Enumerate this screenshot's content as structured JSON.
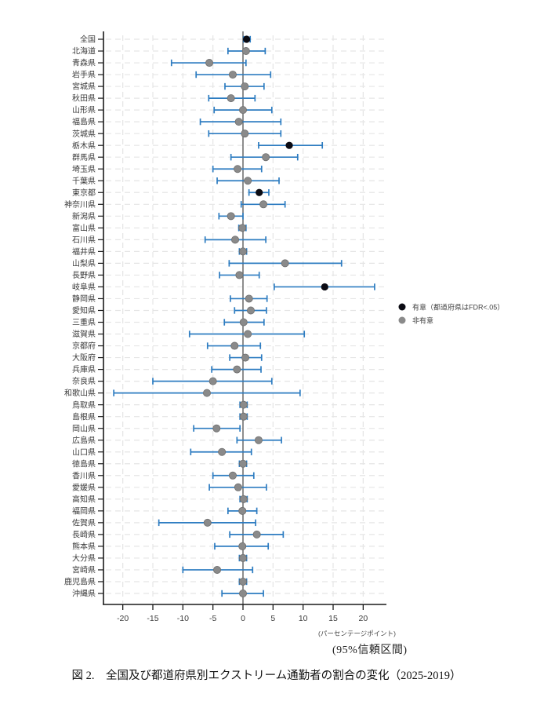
{
  "figure": {
    "caption": "図 2.　全国及び都道府県別エクストリーム通勤者の割合の変化（2025-2019）",
    "ci_note": "(95%信頼区間)"
  },
  "chart_data": {
    "type": "scatter",
    "variant": "forest-plot-dot-with-95ci",
    "xlabel": "(パーセンテージポイント)",
    "xticks": [
      -20,
      -15,
      -10,
      -5,
      0,
      5,
      10,
      15,
      20
    ],
    "xlim": [
      -23.2,
      23.5
    ],
    "grid": true,
    "zero_reference_line": 0,
    "legend_position": "right-middle",
    "legend": [
      {
        "key": "sig",
        "label": "有意（都道府県はFDR<.05）",
        "color": "#0b0b13"
      },
      {
        "key": "ns",
        "label": "非有意",
        "color": "#8a8a8a"
      }
    ],
    "colors": {
      "ci_bar": "#2d7cc1",
      "significant_dot": "#0b0b13",
      "nonsignificant_dot": "#8a8a8a",
      "dot_edge": "#6e6e6e",
      "zero_line": "#5f5f5f",
      "grid": "#e5e5e5",
      "axis": "#1a1a1a",
      "tick_text": "#3c3c3c",
      "legend_text": "#444444"
    },
    "rows": [
      {
        "label": "全国",
        "est": 0.6,
        "lo": 0.1,
        "hi": 1.2,
        "sig": true
      },
      {
        "label": "北海道",
        "est": 0.5,
        "lo": -2.5,
        "hi": 3.7,
        "sig": false
      },
      {
        "label": "青森県",
        "est": -5.6,
        "lo": -11.9,
        "hi": 0.5,
        "sig": false
      },
      {
        "label": "岩手県",
        "est": -1.7,
        "lo": -7.8,
        "hi": 4.6,
        "sig": false
      },
      {
        "label": "宮城県",
        "est": 0.3,
        "lo": -3.0,
        "hi": 3.5,
        "sig": false
      },
      {
        "label": "秋田県",
        "est": -2.0,
        "lo": -5.7,
        "hi": 2.0,
        "sig": false
      },
      {
        "label": "山形県",
        "est": 0.0,
        "lo": -4.8,
        "hi": 4.8,
        "sig": false
      },
      {
        "label": "福島県",
        "est": -0.7,
        "lo": -7.1,
        "hi": 6.3,
        "sig": false
      },
      {
        "label": "茨城県",
        "est": 0.3,
        "lo": -5.7,
        "hi": 6.3,
        "sig": false
      },
      {
        "label": "栃木県",
        "est": 7.7,
        "lo": 2.6,
        "hi": 13.2,
        "sig": true
      },
      {
        "label": "群馬県",
        "est": 3.8,
        "lo": -2.0,
        "hi": 9.1,
        "sig": false
      },
      {
        "label": "埼玉県",
        "est": -0.9,
        "lo": -5.0,
        "hi": 3.1,
        "sig": false
      },
      {
        "label": "千葉県",
        "est": 0.8,
        "lo": -4.3,
        "hi": 6.0,
        "sig": false
      },
      {
        "label": "東京都",
        "est": 2.7,
        "lo": 1.0,
        "hi": 4.3,
        "sig": true
      },
      {
        "label": "神奈川県",
        "est": 3.4,
        "lo": -0.3,
        "hi": 7.0,
        "sig": false
      },
      {
        "label": "新潟県",
        "est": -2.0,
        "lo": -4.0,
        "hi": 0.0,
        "sig": false
      },
      {
        "label": "富山県",
        "est": -0.1,
        "lo": -0.7,
        "hi": 0.5,
        "sig": false
      },
      {
        "label": "石川県",
        "est": -1.3,
        "lo": -6.3,
        "hi": 3.8,
        "sig": false
      },
      {
        "label": "福井県",
        "est": 0.0,
        "lo": -0.6,
        "hi": 0.6,
        "sig": false
      },
      {
        "label": "山梨県",
        "est": 7.0,
        "lo": -2.3,
        "hi": 16.4,
        "sig": false
      },
      {
        "label": "長野県",
        "est": -0.6,
        "lo": -3.9,
        "hi": 2.7,
        "sig": false
      },
      {
        "label": "岐阜県",
        "est": 13.6,
        "lo": 5.2,
        "hi": 21.9,
        "sig": true
      },
      {
        "label": "静岡県",
        "est": 1.0,
        "lo": -2.1,
        "hi": 4.0,
        "sig": false
      },
      {
        "label": "愛知県",
        "est": 1.3,
        "lo": -1.4,
        "hi": 3.9,
        "sig": false
      },
      {
        "label": "三重県",
        "est": 0.1,
        "lo": -3.1,
        "hi": 3.5,
        "sig": false
      },
      {
        "label": "滋賀県",
        "est": 0.8,
        "lo": -8.9,
        "hi": 10.2,
        "sig": false
      },
      {
        "label": "京都府",
        "est": -1.4,
        "lo": -5.9,
        "hi": 2.9,
        "sig": false
      },
      {
        "label": "大阪府",
        "est": 0.4,
        "lo": -2.2,
        "hi": 3.1,
        "sig": false
      },
      {
        "label": "兵庫県",
        "est": -1.0,
        "lo": -5.2,
        "hi": 3.0,
        "sig": false
      },
      {
        "label": "奈良県",
        "est": -5.0,
        "lo": -15.0,
        "hi": 4.8,
        "sig": false
      },
      {
        "label": "和歌山県",
        "est": -6.0,
        "lo": -21.5,
        "hi": 9.5,
        "sig": false
      },
      {
        "label": "鳥取県",
        "est": 0.1,
        "lo": -0.5,
        "hi": 0.7,
        "sig": false
      },
      {
        "label": "島根県",
        "est": 0.1,
        "lo": -0.5,
        "hi": 0.7,
        "sig": false
      },
      {
        "label": "岡山県",
        "est": -4.4,
        "lo": -8.2,
        "hi": -0.5,
        "sig": false
      },
      {
        "label": "広島県",
        "est": 2.6,
        "lo": -1.0,
        "hi": 6.4,
        "sig": false
      },
      {
        "label": "山口県",
        "est": -3.5,
        "lo": -8.7,
        "hi": 1.4,
        "sig": false
      },
      {
        "label": "徳島県",
        "est": 0.0,
        "lo": -0.6,
        "hi": 0.6,
        "sig": false
      },
      {
        "label": "香川県",
        "est": -1.7,
        "lo": -5.0,
        "hi": 1.8,
        "sig": false
      },
      {
        "label": "愛媛県",
        "est": -0.8,
        "lo": -5.6,
        "hi": 3.9,
        "sig": false
      },
      {
        "label": "高知県",
        "est": 0.1,
        "lo": -0.5,
        "hi": 0.7,
        "sig": false
      },
      {
        "label": "福岡県",
        "est": -0.1,
        "lo": -2.5,
        "hi": 2.3,
        "sig": false
      },
      {
        "label": "佐賀県",
        "est": -5.9,
        "lo": -14.0,
        "hi": 2.1,
        "sig": false
      },
      {
        "label": "長崎県",
        "est": 2.3,
        "lo": -2.2,
        "hi": 6.7,
        "sig": false
      },
      {
        "label": "熊本県",
        "est": -0.1,
        "lo": -4.7,
        "hi": 4.2,
        "sig": false
      },
      {
        "label": "大分県",
        "est": 0.0,
        "lo": -0.6,
        "hi": 0.6,
        "sig": false
      },
      {
        "label": "宮崎県",
        "est": -4.3,
        "lo": -10.0,
        "hi": 1.6,
        "sig": false
      },
      {
        "label": "鹿児島県",
        "est": 0.0,
        "lo": -0.6,
        "hi": 0.6,
        "sig": false
      },
      {
        "label": "沖縄県",
        "est": 0.0,
        "lo": -3.5,
        "hi": 3.4,
        "sig": false
      }
    ]
  }
}
